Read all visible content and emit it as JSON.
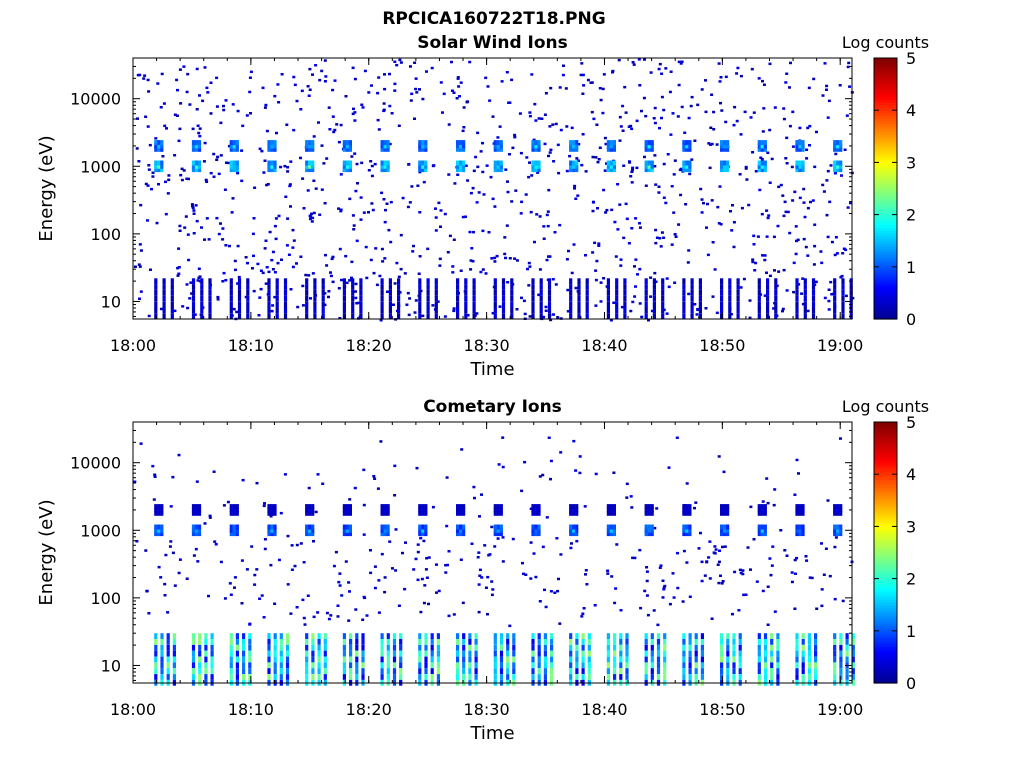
{
  "figure": {
    "title": "RPCICA160722T18.PNG"
  },
  "colors": {
    "background": "#ffffff",
    "axis": "#000000",
    "colormap": [
      "#00008f",
      "#0000ff",
      "#00ffff",
      "#ffff00",
      "#ff0000",
      "#800000"
    ]
  },
  "chart_data": [
    {
      "type": "heatmap",
      "title": "Solar Wind Ions",
      "xlabel": "Time",
      "ylabel": "Energy (eV)",
      "yscale": "log",
      "xlim": [
        "18:00",
        "19:01"
      ],
      "ylim": [
        5.5,
        40000
      ],
      "x_ticks": [
        "18:00",
        "18:10",
        "18:20",
        "18:30",
        "18:40",
        "18:50",
        "19:00"
      ],
      "y_ticks": [
        "10",
        "100",
        "1000",
        "10000"
      ],
      "y_tick_values": [
        10,
        100,
        1000,
        10000
      ],
      "colorbar": {
        "label": "Log counts",
        "range": [
          0,
          5
        ],
        "ticks": [
          "0",
          "1",
          "2",
          "3",
          "4",
          "5"
        ]
      },
      "sweep_start_minutes": [
        1.8,
        5.0,
        8.2,
        11.4,
        14.6,
        17.8,
        21.0,
        24.2,
        27.4,
        30.6,
        33.8,
        37.0,
        40.2,
        43.4,
        46.6,
        49.8,
        53.0,
        56.2,
        59.4
      ],
      "features": [
        {
          "energy_eV": 1000,
          "log_counts": 2.0
        },
        {
          "energy_eV": 2000,
          "log_counts": 1.6
        },
        {
          "energy_eV": 12,
          "log_counts": 0.5
        }
      ]
    },
    {
      "type": "heatmap",
      "title": "Cometary Ions",
      "xlabel": "Time",
      "ylabel": "Energy (eV)",
      "yscale": "log",
      "xlim": [
        "18:00",
        "19:01"
      ],
      "ylim": [
        5.5,
        40000
      ],
      "x_ticks": [
        "18:00",
        "18:10",
        "18:20",
        "18:30",
        "18:40",
        "18:50",
        "19:00"
      ],
      "y_ticks": [
        "10",
        "100",
        "1000",
        "10000"
      ],
      "y_tick_values": [
        10,
        100,
        1000,
        10000
      ],
      "colorbar": {
        "label": "Log counts",
        "range": [
          0,
          5
        ],
        "ticks": [
          "0",
          "1",
          "2",
          "3",
          "4",
          "5"
        ]
      },
      "sweep_start_minutes": [
        1.8,
        5.0,
        8.2,
        11.4,
        14.6,
        17.8,
        21.0,
        24.2,
        27.4,
        30.6,
        33.8,
        37.0,
        40.2,
        43.4,
        46.6,
        49.8,
        53.0,
        56.2,
        59.4
      ],
      "features": [
        {
          "energy_eV": 1000,
          "log_counts": 1.4
        },
        {
          "energy_eV": 2000,
          "log_counts": 0.4
        },
        {
          "energy_eV": 15,
          "log_counts": 2.0
        }
      ]
    }
  ]
}
